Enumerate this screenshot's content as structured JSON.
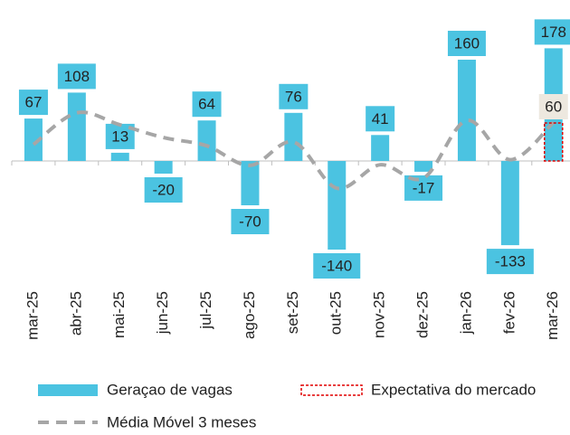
{
  "chart_data": {
    "type": "bar",
    "categories": [
      "mar-25",
      "abr-25",
      "mai-25",
      "jun-25",
      "jul-25",
      "ago-25",
      "set-25",
      "out-25",
      "nov-25",
      "dez-25",
      "jan-26",
      "fev-26",
      "mar-26"
    ],
    "series": [
      {
        "name": "Geraçao de vagas",
        "kind": "bar",
        "color": "#4bc3e1",
        "values": [
          67,
          108,
          13,
          -20,
          64,
          -70,
          76,
          -140,
          41,
          -17,
          160,
          -133,
          178
        ]
      },
      {
        "name": "Expectativa do mercado",
        "kind": "dashed-bar",
        "color": "#e00000",
        "values": [
          null,
          null,
          null,
          null,
          null,
          null,
          null,
          null,
          null,
          null,
          null,
          null,
          60
        ]
      },
      {
        "name": "Média Móvel 3 meses",
        "kind": "line",
        "color": "#a6a6a6",
        "values": [
          26,
          76,
          57,
          37,
          24,
          -7,
          30,
          -43,
          -6,
          -27,
          64,
          2,
          61
        ]
      }
    ],
    "ylim": [
      -160,
      235
    ]
  }
}
